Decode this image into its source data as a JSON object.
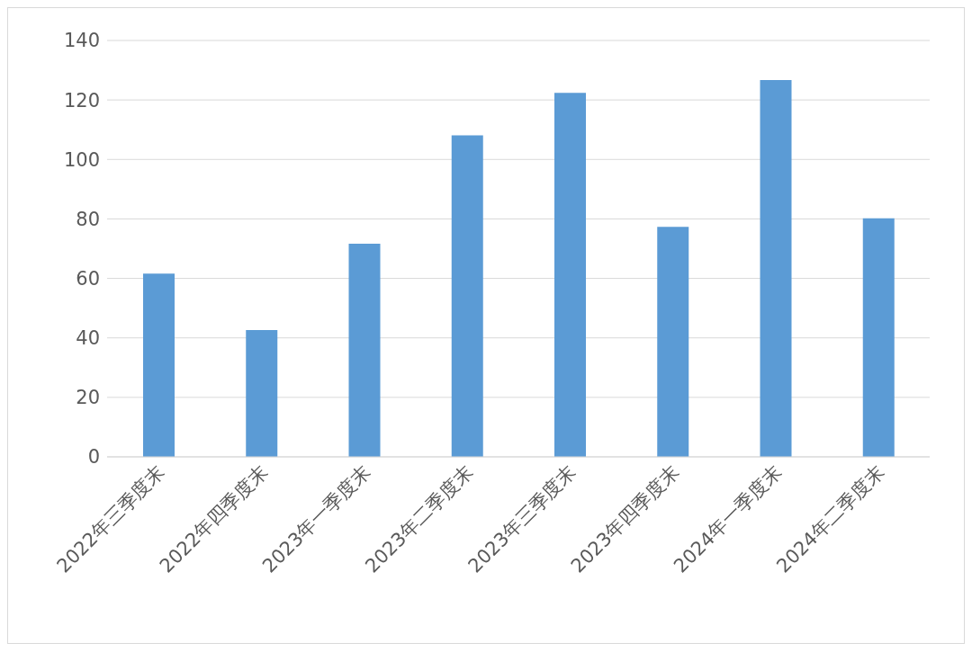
{
  "chart_data": {
    "type": "bar",
    "categories": [
      "2022年三季度末",
      "2022年四季度末",
      "2023年一季度末",
      "2023年二季度末",
      "2023年三季度末",
      "2023年四季度末",
      "2024年一季度末",
      "2024年二季度末"
    ],
    "values": [
      61.6,
      42.6,
      71.7,
      108.1,
      122.4,
      77.3,
      126.7,
      80.2
    ],
    "color": "#5b9bd5",
    "ylim": [
      0,
      140
    ],
    "yticks": [
      0,
      20,
      40,
      60,
      80,
      100,
      120,
      140
    ],
    "grid": "y",
    "legend": false
  }
}
